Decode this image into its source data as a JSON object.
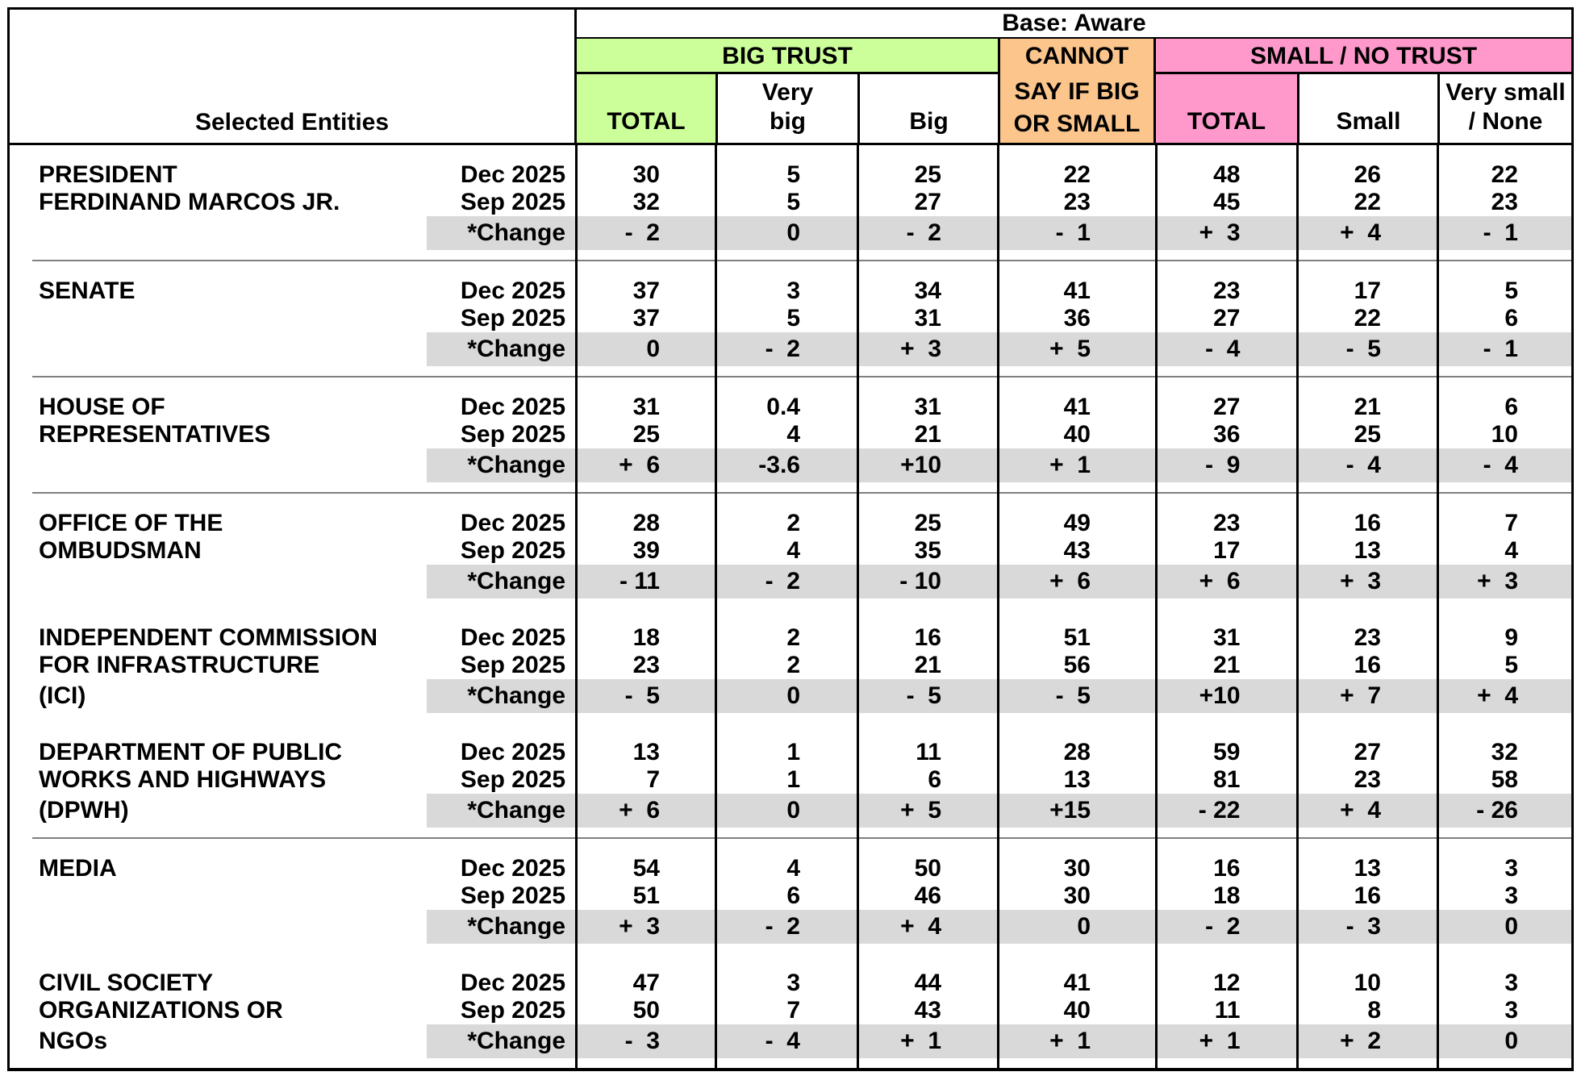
{
  "header": {
    "entities_label": "Selected Entities",
    "base_label": "Base: Aware",
    "big_trust_label": "BIG TRUST",
    "cannot_lines": [
      "CANNOT",
      "SAY IF BIG",
      "OR SMALL"
    ],
    "small_no_trust_label": "SMALL / NO TRUST",
    "sub_headers": [
      [
        "TOTAL"
      ],
      [
        "Very",
        "big"
      ],
      [
        "Big"
      ],
      [
        "TOTAL"
      ],
      [
        "Small"
      ],
      [
        "Very small",
        "/ None"
      ]
    ]
  },
  "colors": {
    "big_trust_green": "#ccff99",
    "cannot_orange": "#fbc58c",
    "small_no_trust_pink": "#ff99cc",
    "change_band_gray": "#d9d9d9",
    "separator_gray": "#808080"
  },
  "table": {
    "blocks": [
      {
        "entity_lines": [
          "PRESIDENT",
          "FERDINAND MARCOS JR.",
          ""
        ],
        "rows": [
          {
            "label": "Dec 2025",
            "change": false,
            "values": [
              "30",
              "5",
              "25",
              "22",
              "48",
              "26",
              "22"
            ]
          },
          {
            "label": "Sep 2025",
            "change": false,
            "values": [
              "32",
              "5",
              "27",
              "23",
              "45",
              "22",
              "23"
            ]
          },
          {
            "label": "*Change",
            "change": true,
            "values": [
              "-  2",
              "0",
              "-  2",
              "-  1",
              "+  3",
              "+  4",
              "-  1"
            ]
          }
        ],
        "separator_after": true
      },
      {
        "entity_lines": [
          "SENATE",
          "",
          ""
        ],
        "rows": [
          {
            "label": "Dec 2025",
            "change": false,
            "values": [
              "37",
              "3",
              "34",
              "41",
              "23",
              "17",
              "5"
            ]
          },
          {
            "label": "Sep 2025",
            "change": false,
            "values": [
              "37",
              "5",
              "31",
              "36",
              "27",
              "22",
              "6"
            ]
          },
          {
            "label": "*Change",
            "change": true,
            "values": [
              "0",
              "-  2",
              "+  3",
              "+  5",
              "-  4",
              "-  5",
              "-  1"
            ]
          }
        ],
        "separator_after": true
      },
      {
        "entity_lines": [
          "HOUSE OF",
          "REPRESENTATIVES",
          ""
        ],
        "rows": [
          {
            "label": "Dec 2025",
            "change": false,
            "values": [
              "31",
              "0.4",
              "31",
              "41",
              "27",
              "21",
              "6"
            ]
          },
          {
            "label": "Sep 2025",
            "change": false,
            "values": [
              "25",
              "4",
              "21",
              "40",
              "36",
              "25",
              "10"
            ]
          },
          {
            "label": "*Change",
            "change": true,
            "values": [
              "+  6",
              "-3.6",
              "+10",
              "+  1",
              "-  9",
              "-  4",
              "-  4"
            ]
          }
        ],
        "separator_after": true
      },
      {
        "entity_lines": [
          "OFFICE OF THE",
          "OMBUDSMAN",
          ""
        ],
        "rows": [
          {
            "label": "Dec 2025",
            "change": false,
            "values": [
              "28",
              "2",
              "25",
              "49",
              "23",
              "16",
              "7"
            ]
          },
          {
            "label": "Sep 2025",
            "change": false,
            "values": [
              "39",
              "4",
              "35",
              "43",
              "17",
              "13",
              "4"
            ]
          },
          {
            "label": "*Change",
            "change": true,
            "values": [
              "- 11",
              "-  2",
              "- 10",
              "+  6",
              "+  6",
              "+  3",
              "+  3"
            ]
          }
        ],
        "separator_after": false
      },
      {
        "entity_lines": [
          "INDEPENDENT COMMISSION",
          "FOR INFRASTRUCTURE",
          "(ICI)"
        ],
        "rows": [
          {
            "label": "Dec 2025",
            "change": false,
            "values": [
              "18",
              "2",
              "16",
              "51",
              "31",
              "23",
              "9"
            ]
          },
          {
            "label": "Sep 2025",
            "change": false,
            "values": [
              "23",
              "2",
              "21",
              "56",
              "21",
              "16",
              "5"
            ]
          },
          {
            "label": "*Change",
            "change": true,
            "values": [
              "-  5",
              "0",
              "-  5",
              "-  5",
              "+10",
              "+  7",
              "+  4"
            ]
          }
        ],
        "separator_after": false
      },
      {
        "entity_lines": [
          "DEPARTMENT OF PUBLIC",
          "WORKS AND HIGHWAYS",
          "(DPWH)"
        ],
        "rows": [
          {
            "label": "Dec 2025",
            "change": false,
            "values": [
              "13",
              "1",
              "11",
              "28",
              "59",
              "27",
              "32"
            ]
          },
          {
            "label": "Sep 2025",
            "change": false,
            "values": [
              "7",
              "1",
              "6",
              "13",
              "81",
              "23",
              "58"
            ]
          },
          {
            "label": "*Change",
            "change": true,
            "values": [
              "+  6",
              "0",
              "+  5",
              "+15",
              "- 22",
              "+  4",
              "- 26"
            ]
          }
        ],
        "separator_after": true
      },
      {
        "entity_lines": [
          "MEDIA",
          "",
          ""
        ],
        "rows": [
          {
            "label": "Dec 2025",
            "change": false,
            "values": [
              "54",
              "4",
              "50",
              "30",
              "16",
              "13",
              "3"
            ]
          },
          {
            "label": "Sep 2025",
            "change": false,
            "values": [
              "51",
              "6",
              "46",
              "30",
              "18",
              "16",
              "3"
            ]
          },
          {
            "label": "*Change",
            "change": true,
            "values": [
              "+  3",
              "-  2",
              "+  4",
              "0",
              "-  2",
              "-  3",
              "0"
            ]
          }
        ],
        "separator_after": false
      },
      {
        "entity_lines": [
          "CIVIL SOCIETY",
          "ORGANIZATIONS OR",
          "NGOs"
        ],
        "rows": [
          {
            "label": "Dec 2025",
            "change": false,
            "values": [
              "47",
              "3",
              "44",
              "41",
              "12",
              "10",
              "3"
            ]
          },
          {
            "label": "Sep 2025",
            "change": false,
            "values": [
              "50",
              "7",
              "43",
              "40",
              "11",
              "8",
              "3"
            ]
          },
          {
            "label": "*Change",
            "change": true,
            "values": [
              "-  3",
              "-  4",
              "+  1",
              "+  1",
              "+  1",
              "+  2",
              "0"
            ]
          }
        ],
        "separator_after": false
      }
    ]
  }
}
